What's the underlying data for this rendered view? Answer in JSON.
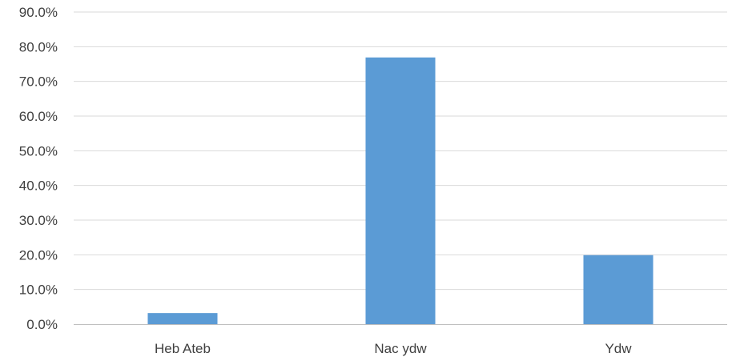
{
  "chart_data": {
    "type": "bar",
    "categories": [
      "Heb Ateb",
      "Nac ydw",
      "Ydw"
    ],
    "values": [
      3.2,
      76.9,
      19.9
    ],
    "value_format": "percent",
    "ylim": [
      0,
      90
    ],
    "ytick_step": 10,
    "yticks": [
      "0.0%",
      "10.0%",
      "20.0%",
      "30.0%",
      "40.0%",
      "50.0%",
      "60.0%",
      "70.0%",
      "80.0%",
      "90.0%"
    ],
    "title": "",
    "xlabel": "",
    "ylabel": "",
    "grid": true,
    "legend": "none",
    "bar_color": "#5b9bd5",
    "grid_color": "#d9d9d9",
    "axis_color": "#bfbfbf",
    "text_color": "#404040"
  }
}
